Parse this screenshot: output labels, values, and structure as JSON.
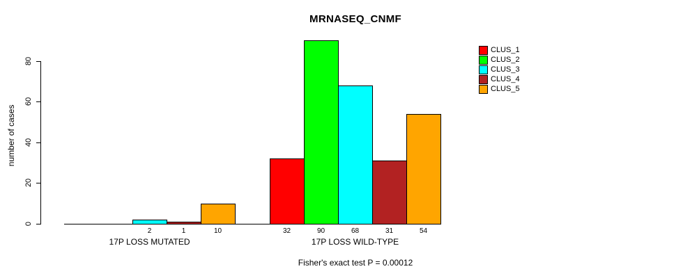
{
  "title": "MRNASEQ_CNMF",
  "y_axis": {
    "label": "number of cases"
  },
  "legend": {
    "items": [
      {
        "label": "CLUS_1",
        "color": "#FF0000"
      },
      {
        "label": "CLUS_2",
        "color": "#00FF00"
      },
      {
        "label": "CLUS_3",
        "color": "#00FFFF"
      },
      {
        "label": "CLUS_4",
        "color": "#B22222"
      },
      {
        "label": "CLUS_5",
        "color": "#FFA500"
      }
    ]
  },
  "footer": "Fisher's exact test P = 0.00012",
  "chart_data": {
    "type": "bar",
    "title": "MRNASEQ_CNMF",
    "ylabel": "number of cases",
    "ylim": [
      0,
      90
    ],
    "y_ticks": [
      0,
      20,
      40,
      60,
      80
    ],
    "grid": false,
    "legend_position": "top-right",
    "series_names": [
      "CLUS_1",
      "CLUS_2",
      "CLUS_3",
      "CLUS_4",
      "CLUS_5"
    ],
    "colors": [
      "#FF0000",
      "#00FF00",
      "#00FFFF",
      "#B22222",
      "#FFA500"
    ],
    "categories": [
      "17P LOSS MUTATED",
      "17P LOSS WILD-TYPE"
    ],
    "groups": [
      {
        "label": "17P LOSS MUTATED",
        "values": [
          0,
          0,
          2,
          1,
          10
        ]
      },
      {
        "label": "17P LOSS WILD-TYPE",
        "values": [
          32,
          90,
          68,
          31,
          54
        ]
      }
    ],
    "annotation": "Fisher's exact test P = 0.00012"
  }
}
